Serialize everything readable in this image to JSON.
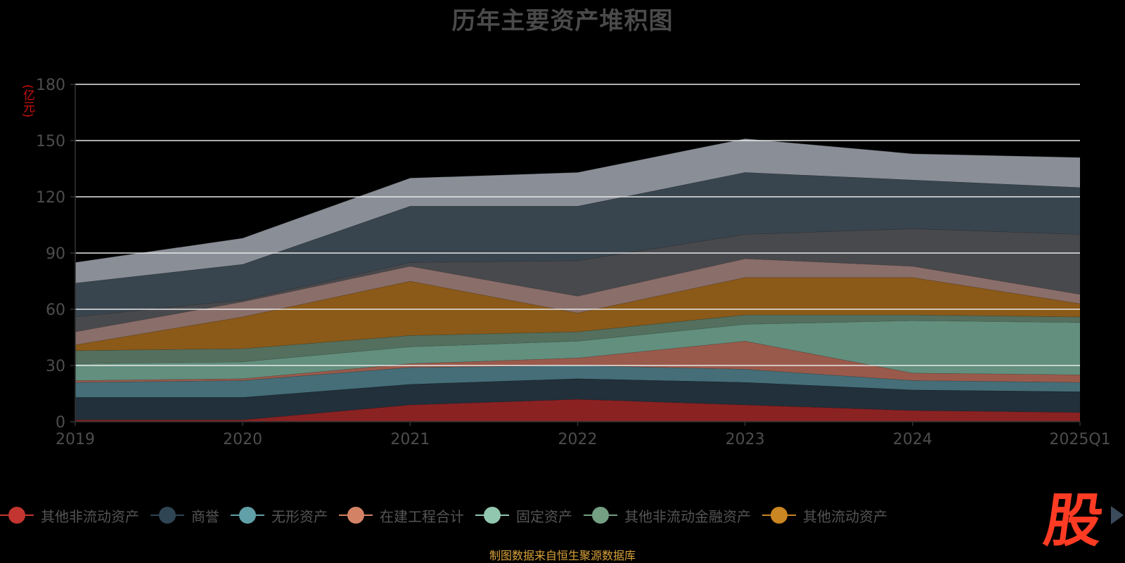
{
  "title": "历年主要资产堆积图",
  "unit_label": "(亿元)",
  "footer": "制图数据来自恒生聚源数据库",
  "logo_text": "股",
  "chart_data": {
    "type": "area",
    "stacked": true,
    "title": "历年主要资产堆积图",
    "ylabel": "(亿元)",
    "categories": [
      "2019",
      "2020",
      "2021",
      "2022",
      "2023",
      "2024",
      "2025Q1"
    ],
    "ylim": [
      0,
      180
    ],
    "yticks": [
      0,
      30,
      60,
      90,
      120,
      150,
      180
    ],
    "grid": true,
    "legend_position": "bottom",
    "series": [
      {
        "name": "其他非流动资产",
        "color": "#8b2222",
        "legend_color": "#c23531",
        "values": [
          1,
          1,
          9,
          12,
          9,
          6,
          5
        ]
      },
      {
        "name": "商誉",
        "color": "#21303b",
        "legend_color": "#2f4554",
        "values": [
          12,
          12,
          11,
          11,
          12,
          11,
          11
        ]
      },
      {
        "name": "无形资产",
        "color": "#456e78",
        "legend_color": "#61a0a8",
        "values": [
          8,
          9,
          9,
          7,
          7,
          5,
          5
        ]
      },
      {
        "name": "在建工程合计",
        "color": "#9a5a4b",
        "legend_color": "#d48265",
        "values": [
          1,
          1,
          2,
          4,
          15,
          4,
          4
        ]
      },
      {
        "name": "固定资产",
        "color": "#628f7e",
        "legend_color": "#91c7ae",
        "values": [
          9,
          9,
          9,
          9,
          9,
          28,
          28
        ]
      },
      {
        "name": "其他非流动金融资产",
        "color": "#546f5d",
        "legend_color": "#749f83",
        "values": [
          7,
          7,
          6,
          5,
          5,
          3,
          3
        ]
      },
      {
        "name": "其他流动资产",
        "color": "#8b5a18",
        "legend_color": "#ca8622",
        "values": [
          3,
          17,
          29,
          10,
          20,
          20,
          7
        ]
      },
      {
        "name": "",
        "color": "#8a6e6a",
        "values": [
          7,
          8,
          8,
          9,
          10,
          6,
          5
        ]
      },
      {
        "name": "",
        "color": "#48494d",
        "values": [
          8,
          1,
          2,
          19,
          13,
          20,
          32
        ]
      },
      {
        "name": "",
        "color": "#39454e",
        "values": [
          18,
          19,
          30,
          29,
          33,
          26,
          25
        ]
      },
      {
        "name": "",
        "color": "#8a8f97",
        "values": [
          11,
          14,
          15,
          18,
          18,
          14,
          16
        ]
      }
    ]
  }
}
